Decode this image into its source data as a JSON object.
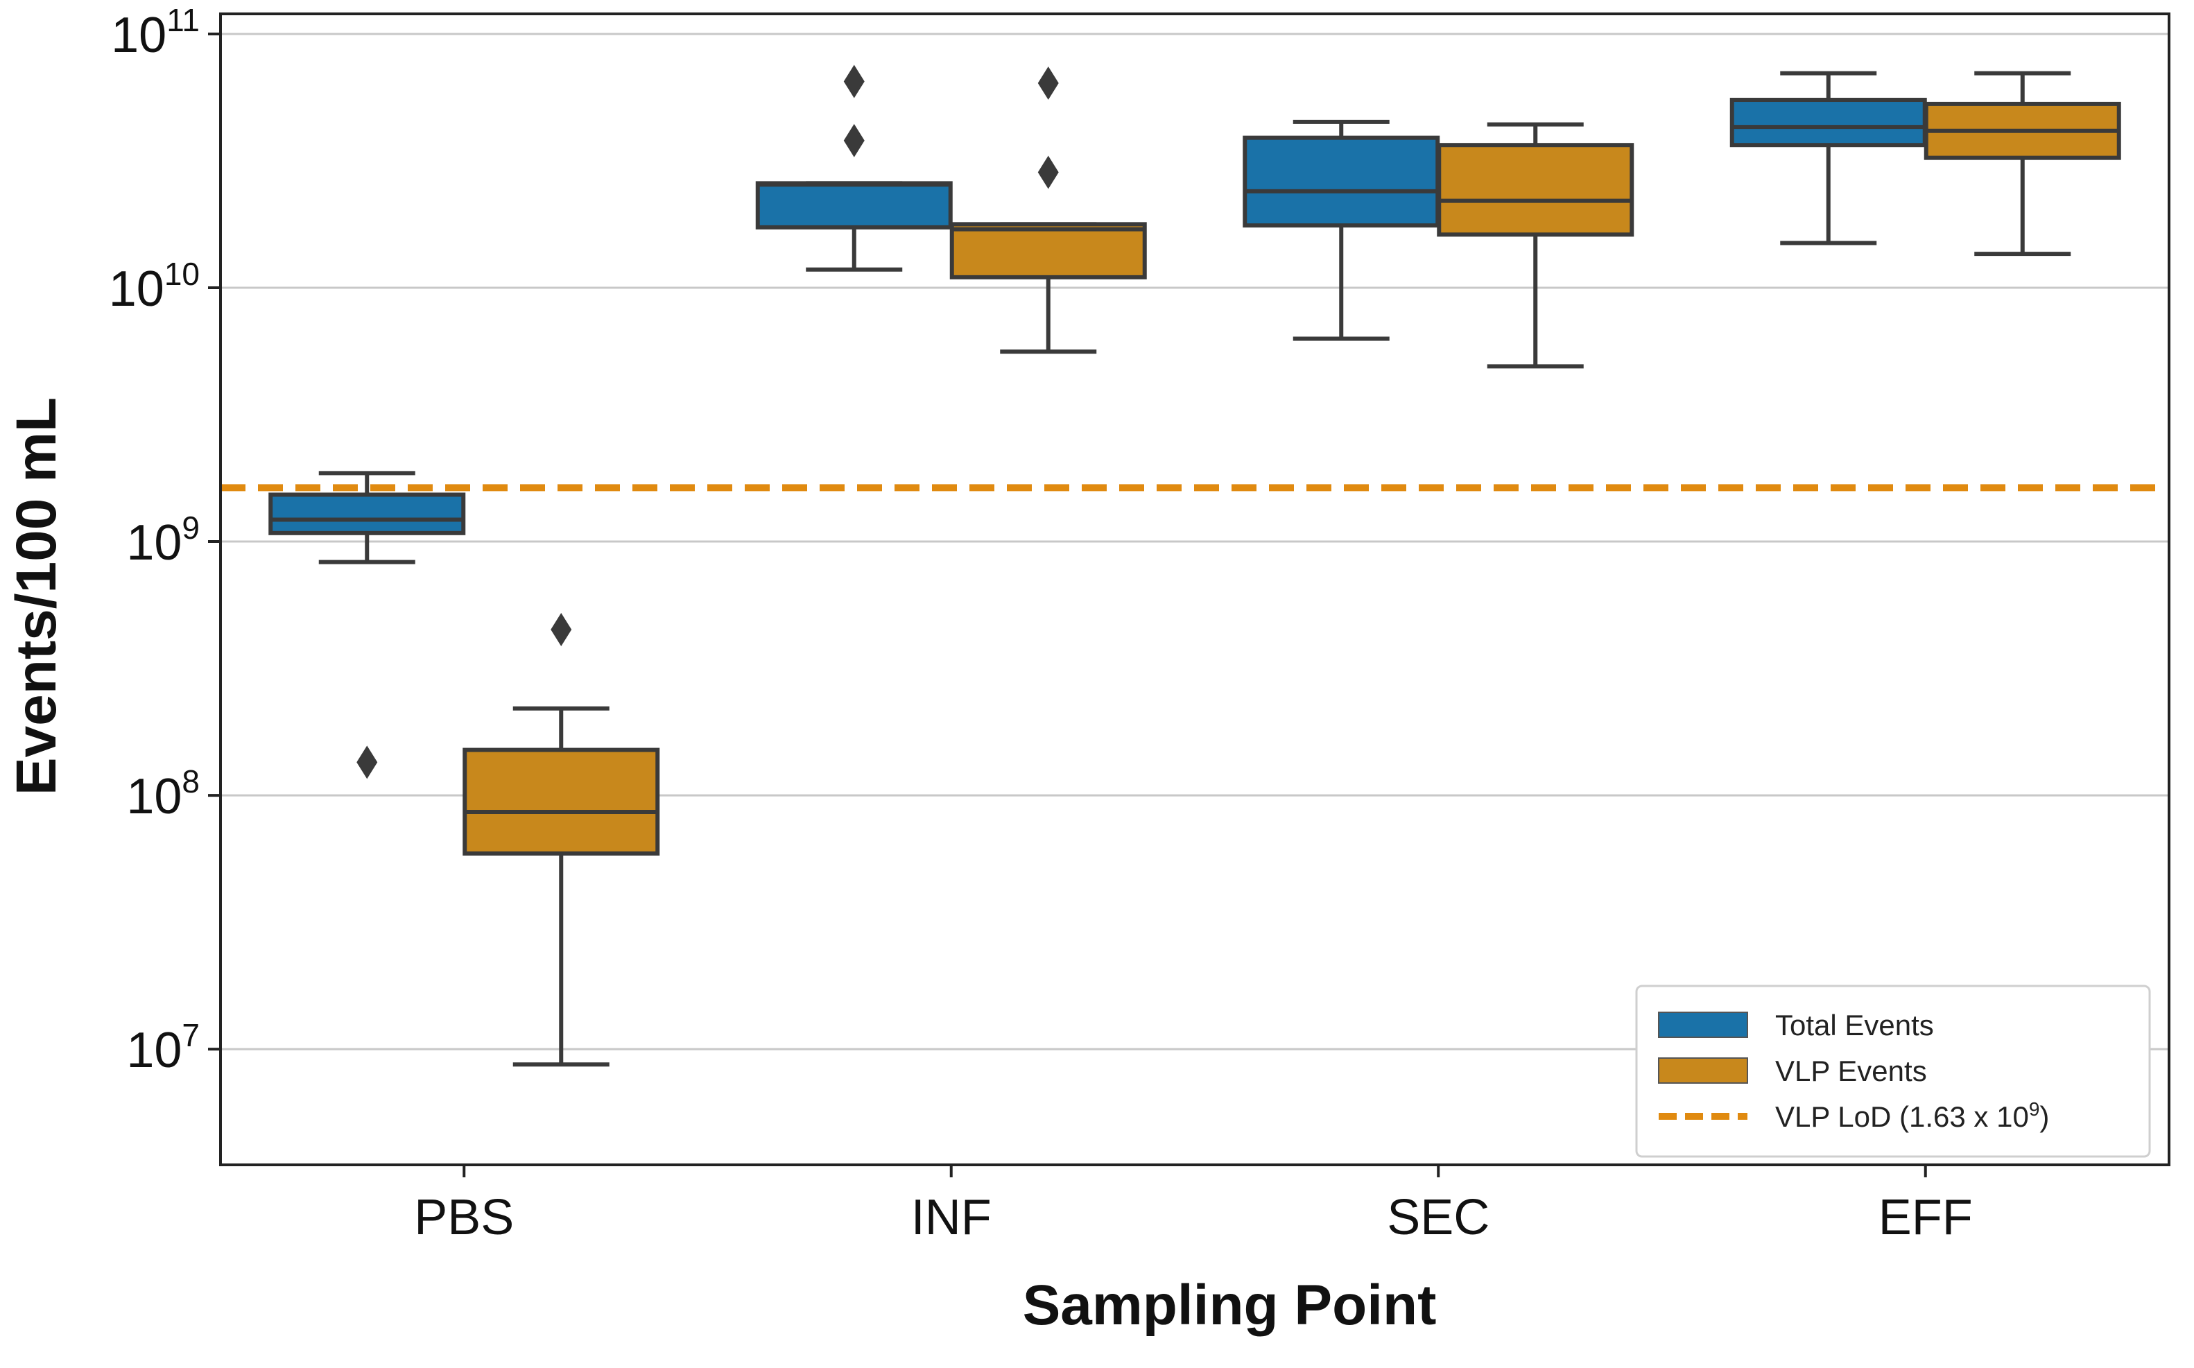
{
  "chart_data": {
    "type": "box",
    "title": "",
    "xlabel": "Sampling Point",
    "ylabel": "Events/100 mL",
    "yscale": "log",
    "ylim": [
      3500000,
      120000000000
    ],
    "yticks": [
      {
        "value": 10000000,
        "base": "10",
        "exp": "7"
      },
      {
        "value": 100000000,
        "base": "10",
        "exp": "8"
      },
      {
        "value": 1000000000,
        "base": "10",
        "exp": "9"
      },
      {
        "value": 10000000000,
        "base": "10",
        "exp": "10"
      },
      {
        "value": 100000000000,
        "base": "10",
        "exp": "11"
      }
    ],
    "grid": "y",
    "categories": [
      "PBS",
      "INF",
      "SEC",
      "EFF"
    ],
    "series": [
      {
        "name": "Total Events",
        "color": "#1a72a8",
        "boxes": [
          {
            "category": "PBS",
            "whislo": 830000000,
            "q1": 1080000000,
            "med": 1220000000,
            "q3": 1530000000,
            "whishi": 1860000000,
            "fliers": [
              135000000
            ]
          },
          {
            "category": "INF",
            "whislo": 11800000000,
            "q1": 17300000000,
            "med": 25500000000,
            "q3": 25800000000,
            "whishi": 25800000000,
            "fliers": [
              38000000000,
              65000000000
            ]
          },
          {
            "category": "SEC",
            "whislo": 6300000000,
            "q1": 17600000000,
            "med": 24000000000,
            "q3": 39000000000,
            "whishi": 45000000000,
            "fliers": []
          },
          {
            "category": "EFF",
            "whislo": 15000000000,
            "q1": 36500000000,
            "med": 43000000000,
            "q3": 55000000000,
            "whishi": 70000000000,
            "fliers": []
          }
        ]
      },
      {
        "name": "VLP Events",
        "color": "#c8881c",
        "boxes": [
          {
            "category": "PBS",
            "whislo": 8700000,
            "q1": 59000000,
            "med": 86000000,
            "q3": 151000000,
            "whishi": 220000000,
            "fliers": [
              450000000
            ]
          },
          {
            "category": "INF",
            "whislo": 5600000000,
            "q1": 11000000000,
            "med": 17000000000,
            "q3": 17800000000,
            "whishi": 17800000000,
            "fliers": [
              28500000000,
              64000000000
            ]
          },
          {
            "category": "SEC",
            "whislo": 4900000000,
            "q1": 16200000000,
            "med": 22000000000,
            "q3": 36500000000,
            "whishi": 44000000000,
            "fliers": []
          },
          {
            "category": "EFF",
            "whislo": 13600000000,
            "q1": 32500000000,
            "med": 41500000000,
            "q3": 53000000000,
            "whishi": 70000000000,
            "fliers": []
          }
        ]
      }
    ],
    "reference_line": {
      "name": "VLP LoD",
      "value": 1630000000,
      "color": "#e08a10",
      "style": "dashed"
    },
    "legend": {
      "placement": "bottom-right",
      "entries": [
        {
          "label": "Total Events",
          "color": "#1a72a8",
          "kind": "patch"
        },
        {
          "label": "VLP Events",
          "color": "#c8881c",
          "kind": "patch"
        },
        {
          "label_prefix": "VLP LoD (1.63 x 10",
          "label_exp": "9",
          "label_suffix": ")",
          "color": "#e08a10",
          "kind": "dashed-line"
        }
      ]
    },
    "colors": {
      "line": "#3a3a3a",
      "grid": "#c8c8c8",
      "axes": "#222222"
    }
  }
}
